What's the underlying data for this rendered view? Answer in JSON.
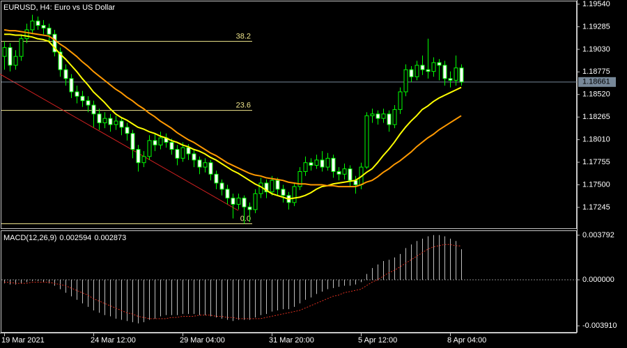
{
  "chart_data": [
    {
      "type": "candlestick",
      "title": "EURUSD, H4:  Euro vs US Dollar",
      "categories": [
        "19 Mar 2021",
        null,
        null,
        null,
        null,
        null,
        null,
        null,
        null,
        null,
        null,
        null,
        null,
        null,
        null,
        null,
        "24 Mar 12:00",
        null,
        null,
        null,
        null,
        null,
        null,
        null,
        null,
        null,
        null,
        null,
        null,
        null,
        null,
        null,
        "29 Mar 04:00",
        null,
        null,
        null,
        null,
        null,
        null,
        null,
        null,
        null,
        null,
        null,
        null,
        null,
        null,
        null,
        "31 Mar 20:00",
        null,
        null,
        null,
        null,
        null,
        null,
        null,
        null,
        null,
        null,
        null,
        null,
        null,
        null,
        null,
        "5 Apr 12:00",
        null,
        null,
        null,
        null,
        null,
        null,
        null,
        null,
        null,
        null,
        null,
        null,
        null,
        null,
        null,
        "8 Apr 04:00",
        null,
        null
      ],
      "open": [
        1.1895,
        1.1905,
        1.1885,
        1.1895,
        1.1915,
        1.1925,
        1.1935,
        1.193,
        1.1927,
        1.192,
        1.19,
        1.188,
        1.187,
        1.1855,
        1.185,
        1.1845,
        1.184,
        1.183,
        1.182,
        1.1825,
        1.1818,
        1.1822,
        1.1815,
        1.1808,
        1.179,
        1.1775,
        1.1782,
        1.18,
        1.1795,
        1.1803,
        1.1798,
        1.179,
        1.178,
        1.1792,
        1.1785,
        1.1778,
        1.177,
        1.1775,
        1.1762,
        1.1752,
        1.1745,
        1.1735,
        1.1728,
        1.1735,
        1.1725,
        1.1722,
        1.174,
        1.1752,
        1.1742,
        1.1755,
        1.1745,
        1.1738,
        1.173,
        1.1748,
        1.1765,
        1.1775,
        1.1772,
        1.1778,
        1.177,
        1.178,
        1.1765,
        1.1762,
        1.1768,
        1.1755,
        1.175,
        1.177,
        1.1828,
        1.183,
        1.1825,
        1.183,
        1.1818,
        1.1835,
        1.1855,
        1.188,
        1.1872,
        1.1885,
        1.188,
        1.1878,
        1.1888,
        1.1885,
        1.187,
        1.1868,
        1.1882
      ],
      "high": [
        1.1912,
        1.191,
        1.1902,
        1.192,
        1.1932,
        1.1942,
        1.194,
        1.1936,
        1.1932,
        1.1925,
        1.1905,
        1.1886,
        1.1875,
        1.1862,
        1.1856,
        1.185,
        1.1845,
        1.1836,
        1.1832,
        1.183,
        1.1828,
        1.1826,
        1.182,
        1.1812,
        1.1795,
        1.1788,
        1.1806,
        1.1808,
        1.181,
        1.1808,
        1.1802,
        1.1795,
        1.1798,
        1.1796,
        1.179,
        1.1782,
        1.178,
        1.1778,
        1.1766,
        1.1756,
        1.175,
        1.174,
        1.174,
        1.1738,
        1.173,
        1.1745,
        1.1758,
        1.1756,
        1.176,
        1.1758,
        1.175,
        1.1742,
        1.1752,
        1.177,
        1.1782,
        1.178,
        1.1784,
        1.1788,
        1.1786,
        1.1784,
        1.177,
        1.1774,
        1.1772,
        1.176,
        1.1775,
        1.1832,
        1.1836,
        1.1834,
        1.1836,
        1.1834,
        1.184,
        1.186,
        1.1886,
        1.1884,
        1.189,
        1.1896,
        1.1915,
        1.1894,
        1.1892,
        1.189,
        1.1878,
        1.1896,
        1.1886
      ],
      "low": [
        1.188,
        1.1878,
        1.188,
        1.189,
        1.191,
        1.192,
        1.1925,
        1.192,
        1.1912,
        1.1895,
        1.1872,
        1.1862,
        1.1848,
        1.1842,
        1.1838,
        1.1832,
        1.1815,
        1.1812,
        1.1814,
        1.181,
        1.1812,
        1.1806,
        1.18,
        1.178,
        1.1765,
        1.177,
        1.1778,
        1.1788,
        1.179,
        1.1792,
        1.1784,
        1.1772,
        1.1776,
        1.1778,
        1.177,
        1.1762,
        1.1764,
        1.1755,
        1.1745,
        1.1738,
        1.1728,
        1.1712,
        1.1722,
        1.1706,
        1.1708,
        1.1718,
        1.1735,
        1.1735,
        1.1738,
        1.1738,
        1.173,
        1.1722,
        1.1726,
        1.1744,
        1.176,
        1.1766,
        1.1768,
        1.1765,
        1.1766,
        1.1758,
        1.1755,
        1.1756,
        1.1748,
        1.174,
        1.1745,
        1.1768,
        1.182,
        1.1818,
        1.182,
        1.181,
        1.1814,
        1.183,
        1.185,
        1.1866,
        1.1868,
        1.1874,
        1.187,
        1.1872,
        1.1868,
        1.1862,
        1.186,
        1.1862,
        1.1862
      ],
      "close": [
        1.1905,
        1.1885,
        1.1895,
        1.1915,
        1.1925,
        1.1935,
        1.193,
        1.1927,
        1.192,
        1.19,
        1.188,
        1.187,
        1.1855,
        1.185,
        1.1845,
        1.184,
        1.183,
        1.182,
        1.1825,
        1.1818,
        1.1822,
        1.1815,
        1.1808,
        1.179,
        1.1775,
        1.1782,
        1.18,
        1.1795,
        1.1803,
        1.1798,
        1.179,
        1.178,
        1.1792,
        1.1785,
        1.1778,
        1.177,
        1.1775,
        1.1762,
        1.1752,
        1.1745,
        1.1735,
        1.1728,
        1.1735,
        1.1725,
        1.1722,
        1.174,
        1.1752,
        1.1742,
        1.1755,
        1.1745,
        1.1738,
        1.173,
        1.1748,
        1.1765,
        1.1775,
        1.1772,
        1.1778,
        1.177,
        1.178,
        1.1765,
        1.1762,
        1.1768,
        1.1755,
        1.175,
        1.177,
        1.1828,
        1.183,
        1.1825,
        1.183,
        1.1818,
        1.1835,
        1.1855,
        1.188,
        1.1872,
        1.1885,
        1.188,
        1.1878,
        1.1888,
        1.1885,
        1.187,
        1.1868,
        1.1882,
        1.18661
      ],
      "candle_color": "#00ff00",
      "bull_fill": "#000000",
      "bear_fill": "#ffffff",
      "lines": [
        {
          "color": "#ffff00",
          "values": [
            1.192,
            1.192,
            1.1919,
            1.1919,
            1.1918,
            1.1917,
            1.1915,
            1.1914,
            1.1912,
            1.1905,
            1.1898,
            1.1892,
            1.1885,
            1.1878,
            1.187,
            1.1863,
            1.1855,
            1.1849,
            1.1843,
            1.1836,
            1.183,
            1.1826,
            1.1823,
            1.1819,
            1.1815,
            1.1813,
            1.181,
            1.1808,
            1.1805,
            1.1803,
            1.18,
            1.1798,
            1.1795,
            1.1793,
            1.179,
            1.1788,
            1.1785,
            1.1781,
            1.1778,
            1.1774,
            1.177,
            1.1766,
            1.1763,
            1.1759,
            1.1755,
            1.1751,
            1.1748,
            1.1744,
            1.174,
            1.1738,
            1.1736,
            1.1734,
            1.1735,
            1.1736,
            1.1738,
            1.1741,
            1.1745,
            1.1748,
            1.1749,
            1.1751,
            1.1752,
            1.1753,
            1.1754,
            1.1755,
            1.1759,
            1.1764,
            1.1768,
            1.1775,
            1.1783,
            1.179,
            1.1798,
            1.1807,
            1.1815,
            1.1822,
            1.1828,
            1.1835,
            1.1839,
            1.1844,
            1.1848,
            1.1851,
            1.1854,
            1.1857,
            1.186
          ]
        },
        {
          "color": "#ff9900",
          "values": [
            1.1925,
            1.1924,
            1.1924,
            1.1923,
            1.1922,
            1.1921,
            1.192,
            1.1919,
            1.1918,
            1.1914,
            1.1909,
            1.1905,
            1.19,
            1.1895,
            1.1889,
            1.1884,
            1.1878,
            1.1873,
            1.1868,
            1.1863,
            1.1858,
            1.1854,
            1.1849,
            1.1845,
            1.184,
            1.1836,
            1.1831,
            1.1827,
            1.1822,
            1.1818,
            1.1814,
            1.1809,
            1.1805,
            1.1801,
            1.1798,
            1.1794,
            1.179,
            1.1786,
            1.1783,
            1.1779,
            1.1775,
            1.1772,
            1.1769,
            1.1766,
            1.1763,
            1.1761,
            1.176,
            1.1758,
            1.1757,
            1.1756,
            1.1755,
            1.1753,
            1.1752,
            1.1751,
            1.1751,
            1.175,
            1.175,
            1.175,
            1.1749,
            1.1749,
            1.1748,
            1.1748,
            1.1748,
            1.1748,
            1.175,
            1.1753,
            1.1755,
            1.1759,
            1.1764,
            1.1768,
            1.1773,
            1.1777,
            1.1782,
            1.1787,
            1.1793,
            1.1798,
            1.1803,
            1.1807,
            1.1812,
            1.1816,
            1.182,
            1.1824,
            1.1828
          ]
        }
      ],
      "fib_color": "#f0e68c",
      "fib_levels": [
        {
          "value": 1.1912,
          "label": "38.2"
        },
        {
          "value": 1.1834,
          "label": "23.6"
        },
        {
          "value": 1.1706,
          "label": "0.0"
        }
      ],
      "trendline": {
        "color": "#d02020",
        "x": [
          0,
          42
        ],
        "values": [
          1.1875,
          1.1721
        ]
      },
      "last_price_color": "#778899",
      "ylim": [
        1.17009,
        1.19587
      ],
      "yticks": [
        {
          "value": 1.1954,
          "label": "1.19540"
        },
        1.19285,
        {
          "value": 1.1903,
          "label": "1.19030"
        },
        1.18775,
        {
          "value": 1.1852,
          "label": "1.18520"
        },
        1.18265,
        {
          "value": 1.1801,
          "label": "1.18010"
        },
        1.17755,
        {
          "value": 1.175,
          "label": "1.17500"
        },
        1.17245
      ]
    },
    {
      "type": "macd",
      "title": "MACD(12,26,9)",
      "color": "#c0c0c0",
      "values": [
        -0.0003,
        -0.0004,
        -0.0004,
        -0.0003,
        -0.0002,
        -0.0001,
        -0.0001,
        -0.0002,
        -0.0003,
        -0.0005,
        -0.0008,
        -0.0011,
        -0.0014,
        -0.0017,
        -0.002,
        -0.0023,
        -0.0026,
        -0.0028,
        -0.003,
        -0.0031,
        -0.0033,
        -0.0034,
        -0.0035,
        -0.0036,
        -0.0037,
        -0.0036,
        -0.0034,
        -0.0033,
        -0.0031,
        -0.003,
        -0.003,
        -0.003,
        -0.0029,
        -0.0029,
        -0.0029,
        -0.003,
        -0.003,
        -0.0031,
        -0.0032,
        -0.0033,
        -0.0034,
        -0.0035,
        -0.0034,
        -0.0034,
        -0.0034,
        -0.0032,
        -0.003,
        -0.0029,
        -0.0027,
        -0.0026,
        -0.0025,
        -0.0025,
        -0.0023,
        -0.002,
        -0.0017,
        -0.0015,
        -0.0012,
        -0.001,
        -0.0008,
        -0.0007,
        -0.0006,
        -0.0005,
        -0.0005,
        -0.0004,
        -0.0002,
        0.0005,
        0.001,
        0.0013,
        0.0016,
        0.0017,
        0.0019,
        0.0022,
        0.0027,
        0.003,
        0.0033,
        0.0035,
        0.0037,
        0.0038,
        0.0038,
        0.0037,
        0.0035,
        0.0033,
        0.002594
      ],
      "signal": {
        "color": "#e03020",
        "values": [
          -0.0002,
          -0.0002,
          -0.0003,
          -0.0003,
          -0.0003,
          -0.0002,
          -0.0002,
          -0.0002,
          -0.0002,
          -0.0003,
          -0.0004,
          -0.0005,
          -0.0007,
          -0.0009,
          -0.0011,
          -0.0013,
          -0.0016,
          -0.0018,
          -0.002,
          -0.0022,
          -0.0024,
          -0.0026,
          -0.0028,
          -0.0029,
          -0.0031,
          -0.0032,
          -0.0033,
          -0.0033,
          -0.0033,
          -0.0033,
          -0.0032,
          -0.0032,
          -0.0031,
          -0.0031,
          -0.0031,
          -0.003,
          -0.003,
          -0.003,
          -0.0031,
          -0.0031,
          -0.0032,
          -0.0032,
          -0.0033,
          -0.0033,
          -0.0033,
          -0.0033,
          -0.0033,
          -0.0032,
          -0.0031,
          -0.003,
          -0.0029,
          -0.0028,
          -0.0027,
          -0.0026,
          -0.0024,
          -0.0022,
          -0.002,
          -0.0018,
          -0.0016,
          -0.0014,
          -0.0013,
          -0.0011,
          -0.001,
          -0.0009,
          -0.0008,
          -0.0005,
          -0.0002,
          0.0,
          0.0003,
          0.0006,
          0.0008,
          0.0011,
          0.0014,
          0.0017,
          0.002,
          0.0023,
          0.0026,
          0.0028,
          0.0029,
          0.003,
          0.003,
          0.0029,
          0.002873
        ]
      },
      "ylim": [
        -0.004493,
        0.004142
      ],
      "yticks": [
        0.003792,
        {
          "value": 0,
          "label": "0.000000"
        },
        {
          "value": -0.00391,
          "label": "-0.003910"
        }
      ]
    }
  ]
}
